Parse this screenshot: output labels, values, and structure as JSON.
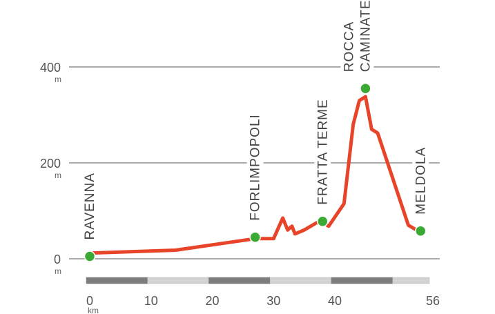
{
  "chart_data": {
    "type": "line",
    "xunit": "km",
    "yunit": "m",
    "xlim": [
      0,
      56
    ],
    "ylim": [
      0,
      400
    ],
    "y_ticks": [
      0,
      200,
      400
    ],
    "x_ticks": [
      0,
      10,
      20,
      30,
      40,
      56
    ],
    "grid": true,
    "series": [
      {
        "x": [
          0,
          7,
          14,
          27,
          30,
          31.5,
          32.3,
          33,
          33.5,
          35,
          37,
          38,
          39,
          41.5,
          43,
          44,
          45,
          46,
          47,
          52,
          54
        ],
        "y": [
          12,
          15,
          18,
          42,
          42,
          85,
          60,
          68,
          52,
          60,
          75,
          75,
          68,
          115,
          280,
          330,
          338,
          270,
          262,
          70,
          55
        ]
      }
    ],
    "waypoints": [
      {
        "label": "RAVENNA",
        "x": 0,
        "y": 5
      },
      {
        "label": "FORLIMPOPOLI",
        "x": 27,
        "y": 45
      },
      {
        "label": "FRATTA TERME",
        "x": 38,
        "y": 78
      },
      {
        "label": "ROCCA",
        "label2": "CAMINATE",
        "x": 45,
        "y": 355
      },
      {
        "label": "MELDOLA",
        "x": 54,
        "y": 58
      }
    ],
    "colors": {
      "line": "#e8442a",
      "marker": "#3aaa35",
      "grid": "#555555",
      "bar_dark": "#7d7d7d",
      "bar_light": "#d2d2d2"
    }
  }
}
